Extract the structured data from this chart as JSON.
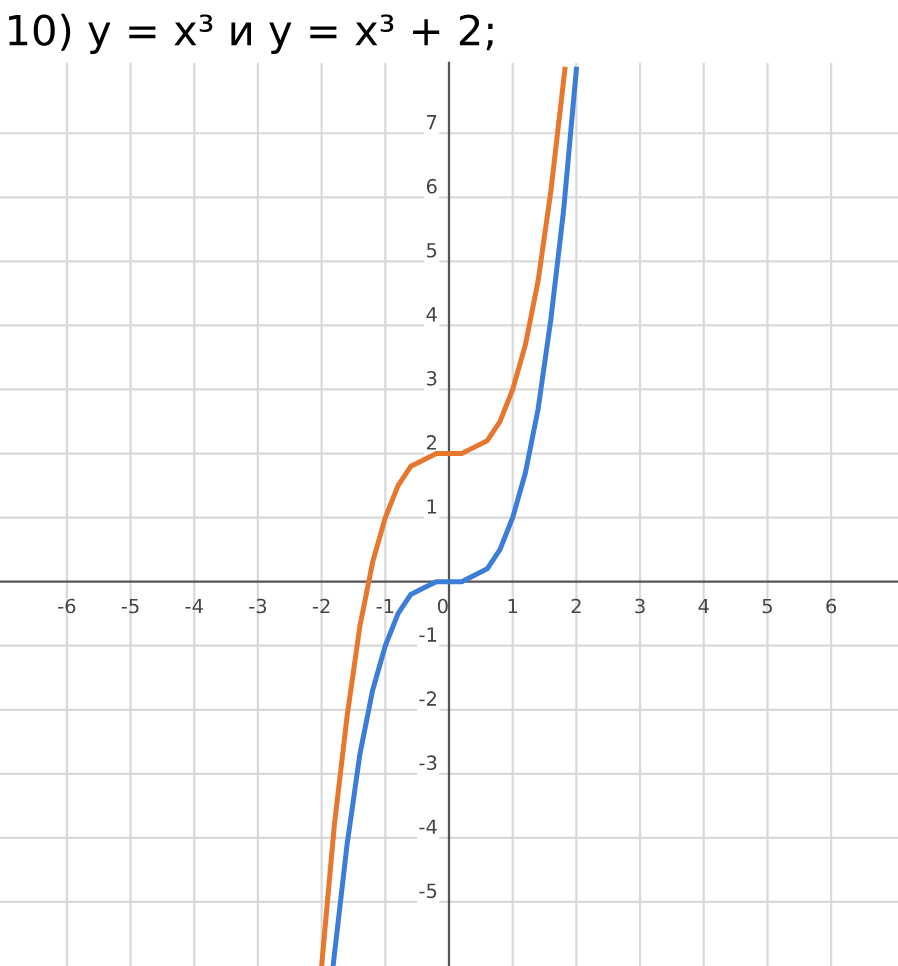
{
  "chart_data": {
    "type": "line",
    "title": "10) y = x³ и y = x³ + 2;",
    "xlim": [
      -7.05,
      7.05
    ],
    "ylim": [
      -6,
      8.1
    ],
    "xticks": [
      -6,
      -5,
      -4,
      -3,
      -2,
      -1,
      0,
      1,
      2,
      3,
      4,
      5,
      6
    ],
    "yticks": [
      -5,
      -4,
      -3,
      -2,
      -1,
      1,
      2,
      3,
      4,
      5,
      6,
      7
    ],
    "grid": true,
    "marker": "none",
    "line_style": "solid",
    "series": [
      {
        "color": "#3b7dd8",
        "x": [
          -1.82,
          -1.6,
          -1.4,
          -1.2,
          -1,
          -0.8,
          -0.6,
          -0.4,
          -0.2,
          0,
          0.2,
          0.4,
          0.6,
          0.8,
          1,
          1.2,
          1.4,
          1.6,
          1.8,
          2
        ],
        "values": [
          -6,
          -4.1,
          -2.7,
          -1.7,
          -1,
          -0.5,
          -0.2,
          -0.1,
          0,
          0,
          0,
          0.1,
          0.2,
          0.5,
          1,
          1.7,
          2.7,
          4.1,
          5.8,
          8
        ]
      },
      {
        "color": "#e8772e",
        "x": [
          -2,
          -1.8,
          -1.6,
          -1.4,
          -1.2,
          -1,
          -0.8,
          -0.6,
          -0.4,
          -0.2,
          0,
          0.2,
          0.4,
          0.6,
          0.8,
          1,
          1.2,
          1.4,
          1.6,
          1.82
        ],
        "values": [
          -6,
          -3.8,
          -2.1,
          -0.7,
          0.3,
          1,
          1.5,
          1.8,
          1.9,
          2,
          2,
          2,
          2.1,
          2.2,
          2.5,
          3,
          3.7,
          4.7,
          6.1,
          8
        ]
      }
    ]
  }
}
